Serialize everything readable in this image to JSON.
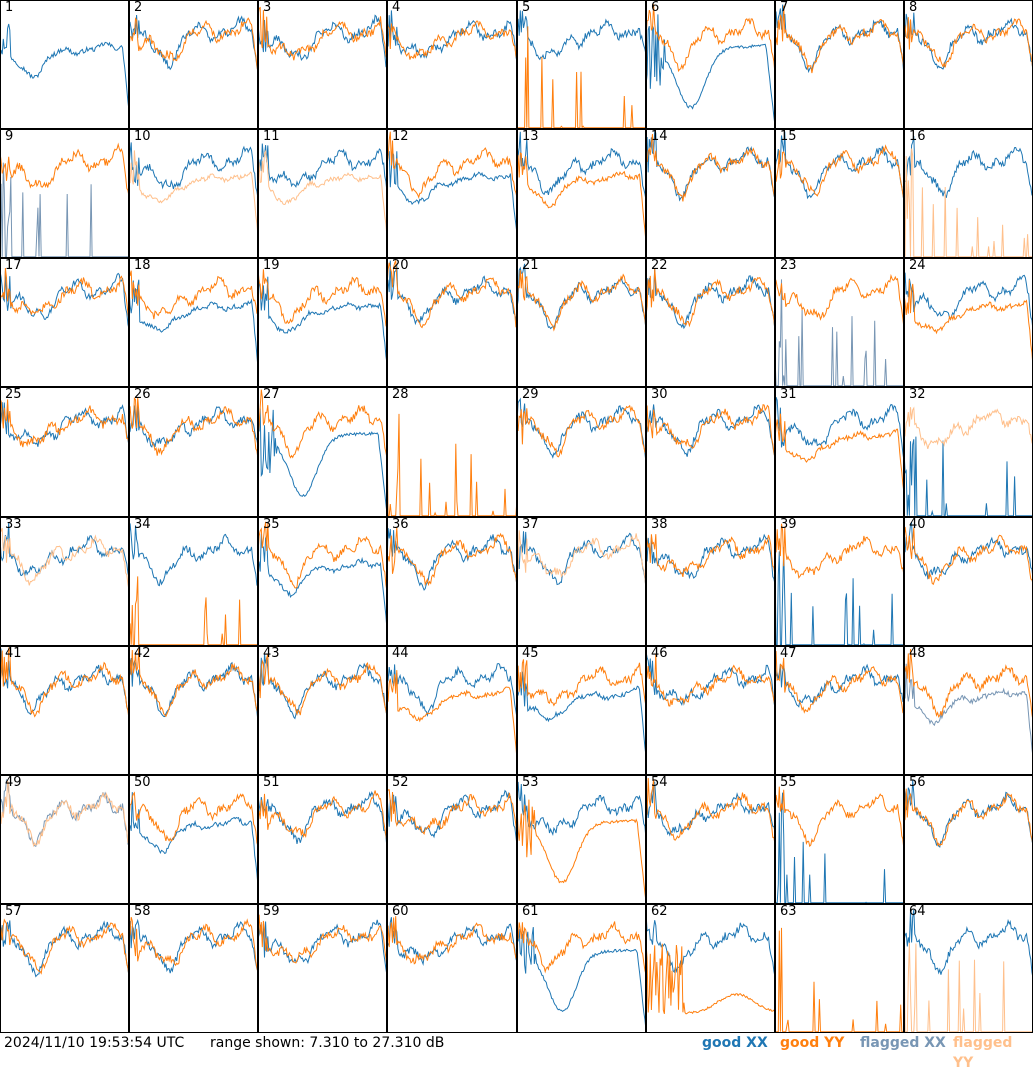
{
  "footer": {
    "timestamp": "2024/11/10 19:53:54 UTC",
    "range_text": "range shown: 7.310 to 27.310 dB"
  },
  "legend": [
    {
      "label": "good XX",
      "color": "#1f77b4"
    },
    {
      "label": "good YY",
      "color": "#ff7f0e"
    },
    {
      "label": "flagged XX",
      "color": "#7896b4"
    },
    {
      "label": "flagged YY",
      "color": "#ffc08c"
    }
  ],
  "chart_data": {
    "type": "line",
    "grid_layout": {
      "rows": 8,
      "cols": 8
    },
    "ylim_db": [
      7.31,
      27.31
    ],
    "series_styles": {
      "good": [
        "#1f77b4",
        "#ff7f0e"
      ],
      "flagged": [
        "#7896b4",
        "#ffc08c"
      ]
    },
    "panels": [
      {
        "n": "1",
        "xx": "low",
        "yy": "high",
        "fxx": false,
        "fyy": false
      },
      {
        "n": "2",
        "xx": "normal",
        "yy": "normal",
        "fxx": false,
        "fyy": false
      },
      {
        "n": "3",
        "xx": "normal",
        "yy": "normal",
        "fxx": false,
        "fyy": false
      },
      {
        "n": "4",
        "xx": "normal",
        "yy": "normal",
        "fxx": false,
        "fyy": false
      },
      {
        "n": "5",
        "xx": "normal",
        "yy": "dead",
        "fxx": false,
        "fyy": false
      },
      {
        "n": "6",
        "xx": "bowl",
        "yy": "normal",
        "fxx": false,
        "fyy": false
      },
      {
        "n": "7",
        "xx": "normal",
        "yy": "normal",
        "fxx": false,
        "fyy": false
      },
      {
        "n": "8",
        "xx": "normal",
        "yy": "normal",
        "fxx": false,
        "fyy": false
      },
      {
        "n": "9",
        "xx": "dead",
        "yy": "normal",
        "fxx": true,
        "fyy": false
      },
      {
        "n": "10",
        "xx": "normal",
        "yy": "low",
        "fxx": false,
        "fyy": true
      },
      {
        "n": "11",
        "xx": "normal",
        "yy": "low",
        "fxx": false,
        "fyy": true
      },
      {
        "n": "12",
        "xx": "low",
        "yy": "normal",
        "fxx": false,
        "fyy": false
      },
      {
        "n": "13",
        "xx": "normal",
        "yy": "low",
        "fxx": false,
        "fyy": false
      },
      {
        "n": "14",
        "xx": "normal",
        "yy": "normal",
        "fxx": false,
        "fyy": false
      },
      {
        "n": "15",
        "xx": "normal",
        "yy": "normal",
        "fxx": false,
        "fyy": false
      },
      {
        "n": "16",
        "xx": "normal",
        "yy": "dead",
        "fxx": false,
        "fyy": true
      },
      {
        "n": "17",
        "xx": "normal",
        "yy": "normal",
        "fxx": false,
        "fyy": false
      },
      {
        "n": "18",
        "xx": "low",
        "yy": "normal",
        "fxx": false,
        "fyy": false
      },
      {
        "n": "19",
        "xx": "low",
        "yy": "normal",
        "fxx": false,
        "fyy": false
      },
      {
        "n": "20",
        "xx": "normal",
        "yy": "normal",
        "fxx": false,
        "fyy": false
      },
      {
        "n": "21",
        "xx": "normal",
        "yy": "normal",
        "fxx": false,
        "fyy": false
      },
      {
        "n": "22",
        "xx": "normal",
        "yy": "normal",
        "fxx": false,
        "fyy": false
      },
      {
        "n": "23",
        "xx": "dead",
        "yy": "normal",
        "fxx": true,
        "fyy": false
      },
      {
        "n": "24",
        "xx": "normal",
        "yy": "low",
        "fxx": false,
        "fyy": false
      },
      {
        "n": "25",
        "xx": "normal",
        "yy": "normal",
        "fxx": false,
        "fyy": false
      },
      {
        "n": "26",
        "xx": "normal",
        "yy": "normal",
        "fxx": false,
        "fyy": false
      },
      {
        "n": "27",
        "xx": "bowl",
        "yy": "normal",
        "fxx": false,
        "fyy": false
      },
      {
        "n": "28",
        "xx": "none",
        "yy": "dead",
        "fxx": false,
        "fyy": false
      },
      {
        "n": "29",
        "xx": "normal",
        "yy": "normal",
        "fxx": false,
        "fyy": false
      },
      {
        "n": "30",
        "xx": "normal",
        "yy": "normal",
        "fxx": false,
        "fyy": false
      },
      {
        "n": "31",
        "xx": "normal",
        "yy": "low",
        "fxx": false,
        "fyy": false
      },
      {
        "n": "32",
        "xx": "dead",
        "yy": "normal",
        "fxx": false,
        "fyy": true
      },
      {
        "n": "33",
        "xx": "normal",
        "yy": "normal",
        "fxx": false,
        "fyy": true
      },
      {
        "n": "34",
        "xx": "normal",
        "yy": "dead",
        "fxx": false,
        "fyy": false
      },
      {
        "n": "35",
        "xx": "low",
        "yy": "normal",
        "fxx": false,
        "fyy": false
      },
      {
        "n": "36",
        "xx": "normal",
        "yy": "normal",
        "fxx": false,
        "fyy": false
      },
      {
        "n": "37",
        "xx": "normal",
        "yy": "normal",
        "fxx": false,
        "fyy": true
      },
      {
        "n": "38",
        "xx": "normal",
        "yy": "normal",
        "fxx": false,
        "fyy": false
      },
      {
        "n": "39",
        "xx": "dead",
        "yy": "normal",
        "fxx": false,
        "fyy": false
      },
      {
        "n": "40",
        "xx": "normal",
        "yy": "normal",
        "fxx": false,
        "fyy": false
      },
      {
        "n": "41",
        "xx": "normal",
        "yy": "normal",
        "fxx": false,
        "fyy": false
      },
      {
        "n": "42",
        "xx": "normal",
        "yy": "normal",
        "fxx": false,
        "fyy": false
      },
      {
        "n": "43",
        "xx": "normal",
        "yy": "normal",
        "fxx": false,
        "fyy": false
      },
      {
        "n": "44",
        "xx": "normal",
        "yy": "low",
        "fxx": false,
        "fyy": false
      },
      {
        "n": "45",
        "xx": "low",
        "yy": "normal",
        "fxx": false,
        "fyy": false
      },
      {
        "n": "46",
        "xx": "normal",
        "yy": "normal",
        "fxx": false,
        "fyy": false
      },
      {
        "n": "47",
        "xx": "normal",
        "yy": "normal",
        "fxx": false,
        "fyy": false
      },
      {
        "n": "48",
        "xx": "low",
        "yy": "normal",
        "fxx": true,
        "fyy": false
      },
      {
        "n": "49",
        "xx": "normal",
        "yy": "normal",
        "fxx": true,
        "fyy": true
      },
      {
        "n": "50",
        "xx": "low",
        "yy": "normal",
        "fxx": false,
        "fyy": false
      },
      {
        "n": "51",
        "xx": "normal",
        "yy": "normal",
        "fxx": false,
        "fyy": false
      },
      {
        "n": "52",
        "xx": "normal",
        "yy": "normal",
        "fxx": false,
        "fyy": false
      },
      {
        "n": "53",
        "xx": "normal",
        "yy": "bowl",
        "fxx": false,
        "fyy": false
      },
      {
        "n": "54",
        "xx": "normal",
        "yy": "normal",
        "fxx": false,
        "fyy": false
      },
      {
        "n": "55",
        "xx": "dead",
        "yy": "normal",
        "fxx": false,
        "fyy": false
      },
      {
        "n": "56",
        "xx": "normal",
        "yy": "normal",
        "fxx": false,
        "fyy": false
      },
      {
        "n": "57",
        "xx": "normal",
        "yy": "normal",
        "fxx": false,
        "fyy": false
      },
      {
        "n": "58",
        "xx": "normal",
        "yy": "normal",
        "fxx": false,
        "fyy": false
      },
      {
        "n": "59",
        "xx": "normal",
        "yy": "normal",
        "fxx": false,
        "fyy": false
      },
      {
        "n": "60",
        "xx": "normal",
        "yy": "normal",
        "fxx": false,
        "fyy": false
      },
      {
        "n": "61",
        "xx": "bowl",
        "yy": "normal",
        "fxx": false,
        "fyy": false
      },
      {
        "n": "62",
        "xx": "normal",
        "yy": "lowbowl",
        "fxx": false,
        "fyy": false
      },
      {
        "n": "63",
        "xx": "none",
        "yy": "dead",
        "fxx": false,
        "fyy": false
      },
      {
        "n": "64",
        "xx": "normal",
        "yy": "dead",
        "fxx": false,
        "fyy": true
      }
    ]
  }
}
